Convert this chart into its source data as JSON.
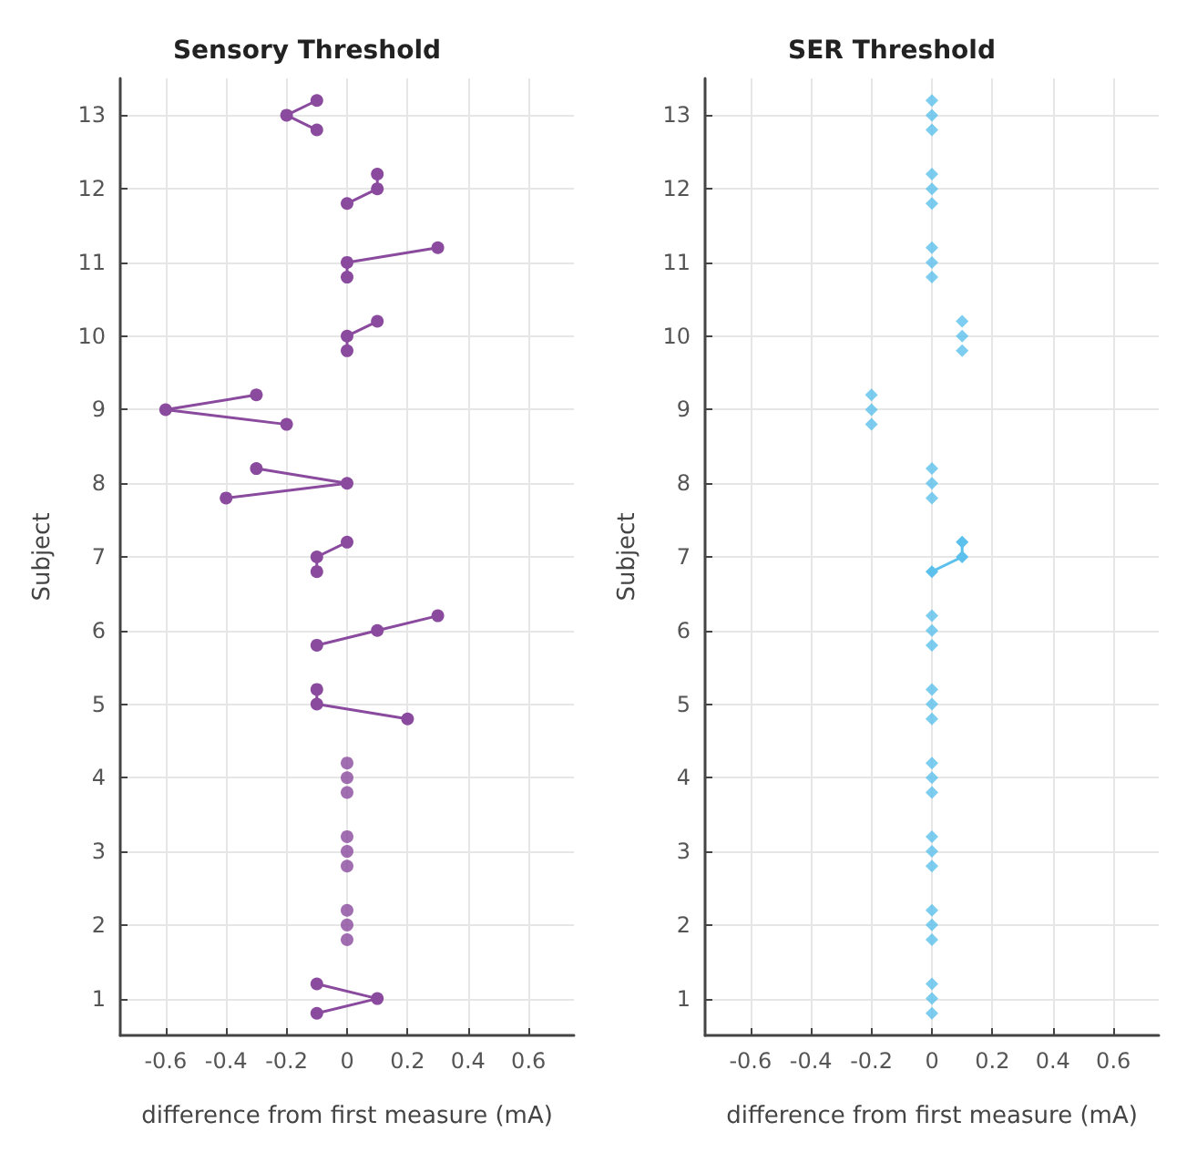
{
  "chart_data": [
    {
      "type": "line",
      "orientation": "horizontal",
      "title": "Sensory Threshold",
      "xlabel": "difference from first measure (mA)",
      "ylabel": "Subject",
      "marker": "circle",
      "grid": true,
      "xlim": [
        -0.75,
        0.75
      ],
      "xticks": [
        -0.6,
        -0.4,
        -0.2,
        0,
        0.2,
        0.4,
        0.6
      ],
      "ylim": [
        0.5,
        13.5
      ],
      "yticks": [
        1,
        2,
        3,
        4,
        5,
        6,
        7,
        8,
        9,
        10,
        11,
        12,
        13
      ],
      "series": [
        {
          "color": "#8a4a9e",
          "x": [
            13.2,
            13,
            12.8,
            12.5,
            12.2,
            12,
            11.8,
            11.5,
            11.2,
            11,
            10.8,
            10.5,
            10.2,
            10,
            9.8,
            9.5,
            9.2,
            9,
            8.8,
            8.5,
            8.2,
            8,
            7.8,
            7.5,
            7.2,
            7,
            6.8,
            6.5,
            6.2,
            6,
            5.8,
            5.5,
            5.2,
            5,
            4.8,
            4.5,
            1.5,
            1.2,
            1,
            0.8
          ],
          "values": [
            -0.1,
            -0.2,
            -0.1,
            null,
            0.1,
            0.1,
            0,
            null,
            0.3,
            0,
            0,
            null,
            0.1,
            0,
            0,
            null,
            -0.3,
            -0.6,
            -0.2,
            null,
            -0.3,
            0,
            -0.4,
            null,
            0,
            -0.1,
            -0.1,
            null,
            0.3,
            0.1,
            -0.1,
            null,
            -0.1,
            -0.1,
            0.2,
            null,
            null,
            -0.1,
            0.1,
            -0.1
          ]
        },
        {
          "type": "scatter",
          "color": "#8a4a9e",
          "x": [
            4.2,
            4,
            3.8,
            3.2,
            3,
            2.8,
            2.2,
            2,
            1.8
          ],
          "values": [
            0,
            0,
            0,
            0,
            0,
            0,
            0,
            0,
            0
          ]
        }
      ]
    },
    {
      "type": "line",
      "orientation": "horizontal",
      "title": "SER Threshold",
      "xlabel": "difference from first measure (mA)",
      "ylabel": "Subject",
      "marker": "diamond",
      "grid": true,
      "xlim": [
        -0.75,
        0.75
      ],
      "xticks": [
        -0.6,
        -0.4,
        -0.2,
        0,
        0.2,
        0.4,
        0.6
      ],
      "ylim": [
        0.5,
        13.5
      ],
      "yticks": [
        1,
        2,
        3,
        4,
        5,
        6,
        7,
        8,
        9,
        10,
        11,
        12,
        13
      ],
      "series": [
        {
          "color": "#5bc0eb",
          "x": [
            7.2,
            7,
            6.8
          ],
          "values": [
            0.1,
            0.1,
            0
          ]
        },
        {
          "type": "scatter",
          "color": "#5bc0eb",
          "x": [
            13.2,
            13,
            12.8,
            12.2,
            12,
            11.8,
            11.2,
            11,
            10.8,
            10.2,
            10,
            9.8,
            9.2,
            9,
            8.8,
            8.2,
            8,
            7.8,
            6.2,
            6,
            5.8,
            5.2,
            5,
            4.8,
            4.2,
            4,
            3.8,
            3.2,
            3,
            2.8,
            2.2,
            2,
            1.8,
            1.2,
            1,
            0.8
          ],
          "values": [
            0,
            0,
            0,
            0,
            0,
            0,
            0,
            0,
            0,
            0.1,
            0.1,
            0.1,
            -0.2,
            -0.2,
            -0.2,
            0,
            0,
            0,
            0,
            0,
            0,
            0,
            0,
            0,
            0,
            0,
            0,
            0,
            0,
            0,
            0,
            0,
            0,
            0,
            0,
            0
          ]
        }
      ]
    }
  ]
}
